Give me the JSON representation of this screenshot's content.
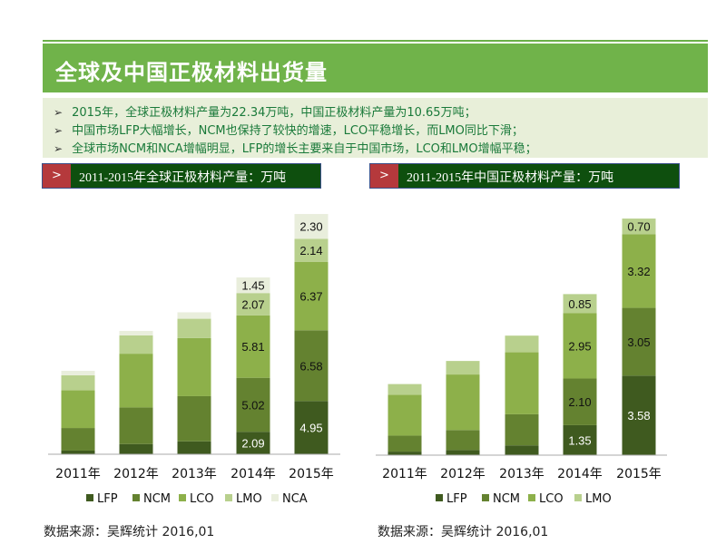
{
  "title": "全球及中国正极材料出货量",
  "bullets": [
    "2015年，全球正极材料产量为22.34万吨，中国正极材料产量为10.65万吨；",
    "中国市场LFP大幅增长，NCM也保持了较快的增速，LCO平稳增长，而LMO同比下滑；",
    "全球市场NCM和NCA增幅明显，LFP的增长主要来自于中国市场，LCO和LMO增幅平稳；"
  ],
  "bullet_marker": "➢",
  "header_marker": ">",
  "colors": {
    "title_bar": "#70b34a",
    "header_bg": "#0e4f0e",
    "marker_bg": "#b5393c",
    "LFP": "#3f5a1f",
    "NCM": "#648230",
    "LCO": "#8db04a",
    "LMO": "#b8d08d",
    "NCA": "#e9eedc"
  },
  "chart_data": [
    {
      "type": "bar",
      "stacked": true,
      "title": "2011-2015年全球正极材料产量：万吨",
      "categories": [
        "2011年",
        "2012年",
        "2013年",
        "2014年",
        "2015年"
      ],
      "series": [
        {
          "name": "LFP",
          "values": [
            0.34,
            0.95,
            1.2,
            2.09,
            4.95
          ]
        },
        {
          "name": "NCM",
          "values": [
            2.1,
            3.4,
            4.2,
            5.02,
            6.58
          ]
        },
        {
          "name": "LCO",
          "values": [
            3.5,
            5.0,
            5.4,
            5.81,
            6.37
          ]
        },
        {
          "name": "LMO",
          "values": [
            1.4,
            1.7,
            1.8,
            2.07,
            2.14
          ]
        },
        {
          "name": "NCA",
          "values": [
            0.42,
            0.42,
            0.6,
            1.45,
            2.3
          ]
        }
      ],
      "labeled_categories": [
        "2014年",
        "2015年"
      ],
      "legend": "bottom",
      "grid": false,
      "source": "数据来源：吴辉统计   2016,01"
    },
    {
      "type": "bar",
      "stacked": true,
      "title": "2011-2015年中国正极材料产量：万吨",
      "categories": [
        "2011年",
        "2012年",
        "2013年",
        "2014年",
        "2015年"
      ],
      "series": [
        {
          "name": "LFP",
          "values": [
            0.16,
            0.23,
            0.44,
            1.35,
            3.58
          ]
        },
        {
          "name": "NCM",
          "values": [
            0.72,
            0.9,
            1.4,
            2.1,
            3.05
          ]
        },
        {
          "name": "LCO",
          "values": [
            1.84,
            2.5,
            2.79,
            2.95,
            3.32
          ]
        },
        {
          "name": "LMO",
          "values": [
            0.48,
            0.61,
            0.75,
            0.85,
            0.7
          ]
        }
      ],
      "labeled_categories": [
        "2014年",
        "2015年"
      ],
      "legend": "bottom",
      "grid": false,
      "source": "数据来源：吴辉统计   2016,01"
    }
  ]
}
